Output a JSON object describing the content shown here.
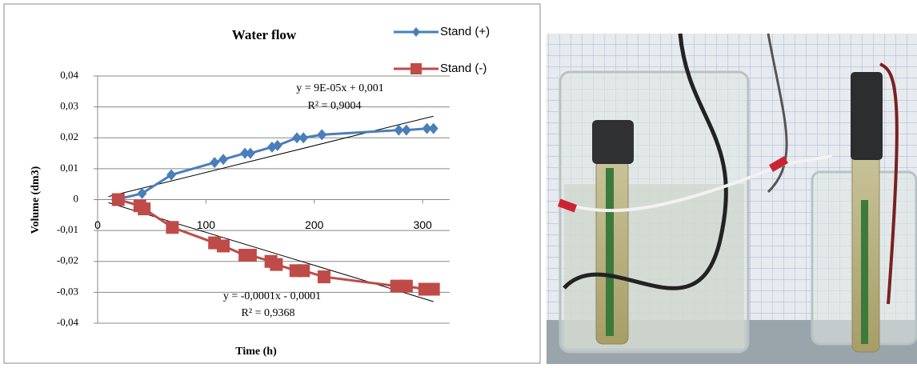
{
  "chart_data": {
    "type": "line",
    "title": "Water flow",
    "x_label": "Time (h)",
    "y_label": "Volume (dm3)",
    "xlim": [
      0,
      325
    ],
    "ylim": [
      -0.04,
      0.04
    ],
    "xticks": [
      0,
      100,
      200,
      300
    ],
    "yticks": [
      {
        "value": 0.04,
        "label": "0,04"
      },
      {
        "value": 0.03,
        "label": "0,03"
      },
      {
        "value": 0.02,
        "label": "0,02"
      },
      {
        "value": 0.01,
        "label": "0,01"
      },
      0,
      {
        "value": -0.01,
        "label": "-0,01"
      },
      {
        "value": -0.02,
        "label": "-0,02"
      },
      {
        "value": -0.03,
        "label": "-0,03"
      },
      {
        "value": -0.04,
        "label": "-0,04"
      }
    ],
    "grid": true,
    "legend": "upper right",
    "series": [
      {
        "name": "Stand (+)",
        "color": "#4a7ebb",
        "marker": "diamond",
        "x": [
          17,
          41,
          68,
          108,
          116,
          136,
          141,
          161,
          166,
          184,
          190,
          207,
          278,
          285,
          304,
          310
        ],
        "values": [
          0,
          0.002,
          0.008,
          0.012,
          0.013,
          0.015,
          0.015,
          0.017,
          0.0175,
          0.02,
          0.02,
          0.021,
          0.0225,
          0.0225,
          0.023,
          0.023
        ],
        "trendline": {
          "x": [
            10,
            310
          ],
          "values": [
            0.001,
            0.027
          ],
          "equation": "y = 9E-05x + 0,001",
          "r2": "R² = 0,9004"
        }
      },
      {
        "name": "Stand (-)",
        "color": "#be4b48",
        "marker": "square",
        "x": [
          19,
          39,
          43,
          69,
          108,
          116,
          136,
          141,
          160,
          165,
          183,
          190,
          209,
          276,
          285,
          302,
          310
        ],
        "values": [
          0,
          -0.002,
          -0.003,
          -0.009,
          -0.014,
          -0.015,
          -0.018,
          -0.018,
          -0.02,
          -0.021,
          -0.023,
          -0.023,
          -0.025,
          -0.028,
          -0.028,
          -0.029,
          -0.029
        ],
        "trendline": {
          "x": [
            10,
            310
          ],
          "values": [
            -0.001,
            -0.033
          ],
          "equation": "y = -0,0001x - 0,0001",
          "r2": "R² = 0,9368"
        }
      }
    ]
  }
}
